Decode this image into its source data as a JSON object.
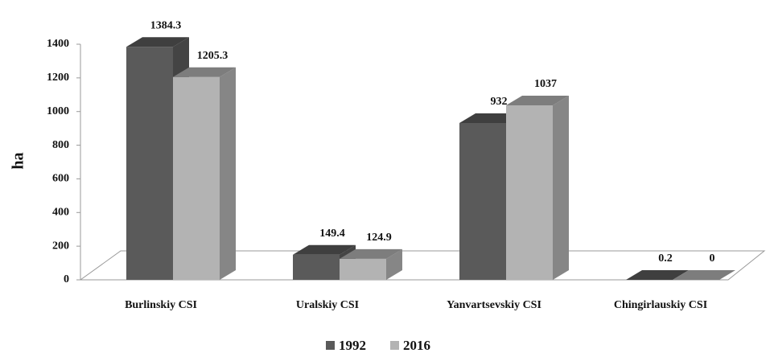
{
  "chart_data": {
    "type": "bar3d",
    "y_label": "ha",
    "categories": [
      "Burlinskiy CSI",
      "Uralskiy CSI",
      "Yanvartsevskiy CSI",
      "Chingirlauskiy CSI"
    ],
    "series": [
      {
        "name": "1992",
        "color": "#5a5a5a",
        "values": [
          1384.3,
          149.4,
          932,
          0.2
        ]
      },
      {
        "name": "2016",
        "color": "#b3b3b3",
        "values": [
          1205.3,
          124.9,
          1037,
          0
        ]
      }
    ],
    "ylim": [
      0,
      1400
    ],
    "yticks": [
      0,
      200,
      400,
      600,
      800,
      1000,
      1200,
      1400
    ],
    "legend": "bottom"
  }
}
